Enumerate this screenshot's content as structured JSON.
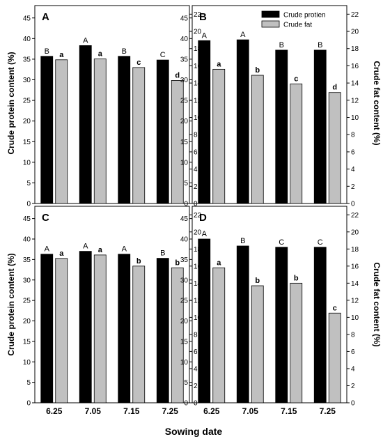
{
  "figure": {
    "xlabel": "Sowing date",
    "ylabel_left": "Crude protein content (%)",
    "ylabel_right": "Crude fat content (%)",
    "legend": [
      "Crude protien",
      "Crude fat"
    ],
    "colors": {
      "protein": "#000000",
      "fat": "#c0c0c0"
    }
  },
  "chart_data": [
    {
      "type": "bar",
      "panel": "A",
      "categories": [
        "6.25",
        "7.05",
        "7.15",
        "7.25"
      ],
      "series": [
        {
          "name": "Crude protien",
          "axis": "left",
          "values": [
            35.7,
            38.3,
            35.7,
            34.8
          ],
          "labels": [
            "B",
            "A",
            "B",
            "C"
          ]
        },
        {
          "name": "Crude fat",
          "axis": "right",
          "values": [
            16.7,
            16.8,
            15.8,
            14.3
          ],
          "labels": [
            "a",
            "a",
            "c",
            "d"
          ]
        }
      ],
      "ylim_left": [
        0,
        48
      ],
      "yticks_left": [
        0,
        5,
        10,
        15,
        20,
        25,
        30,
        35,
        40,
        45
      ],
      "ylim_right": [
        0,
        23
      ],
      "yticks_right": [
        0,
        2,
        4,
        6,
        8,
        10,
        12,
        14,
        16,
        18,
        20,
        22
      ],
      "ylabel_left": "Crude protein content (%)",
      "legend_position": "top-right"
    },
    {
      "type": "bar",
      "panel": "B",
      "categories": [
        "6.25",
        "7.05",
        "7.15",
        "7.25"
      ],
      "series": [
        {
          "name": "Crude protien",
          "axis": "left",
          "values": [
            39.5,
            39.7,
            37.2,
            37.2
          ],
          "labels": [
            "A",
            "A",
            "B",
            "B"
          ]
        },
        {
          "name": "Crude fat",
          "axis": "right",
          "values": [
            15.6,
            14.9,
            13.9,
            12.9
          ],
          "labels": [
            "a",
            "b",
            "c",
            "d"
          ]
        }
      ],
      "ylim_left": [
        0,
        48
      ],
      "yticks_left": [
        0,
        5,
        10,
        15,
        20,
        25,
        30,
        35,
        40,
        45
      ],
      "ylim_right": [
        0,
        23
      ],
      "yticks_right": [
        0,
        2,
        4,
        6,
        8,
        10,
        12,
        14,
        16,
        18,
        20,
        22
      ],
      "ylabel_right": "Crude fat content (%)",
      "legend_position": "top-right"
    },
    {
      "type": "bar",
      "panel": "C",
      "categories": [
        "6.25",
        "7.05",
        "7.15",
        "7.25"
      ],
      "series": [
        {
          "name": "Crude protien",
          "axis": "left",
          "values": [
            36.3,
            37.0,
            36.3,
            35.3
          ],
          "labels": [
            "A",
            "A",
            "A",
            "B"
          ]
        },
        {
          "name": "Crude fat",
          "axis": "right",
          "values": [
            16.9,
            17.3,
            16.0,
            15.8
          ],
          "labels": [
            "a",
            "a",
            "b",
            "b"
          ]
        }
      ],
      "ylim_left": [
        0,
        48
      ],
      "yticks_left": [
        0,
        5,
        10,
        15,
        20,
        25,
        30,
        35,
        40,
        45
      ],
      "ylim_right": [
        0,
        23
      ],
      "yticks_right": [
        0,
        2,
        4,
        6,
        8,
        10,
        12,
        14,
        16,
        18,
        20,
        22
      ],
      "ylabel_left": "Crude protein content (%)"
    },
    {
      "type": "bar",
      "panel": "D",
      "categories": [
        "6.25",
        "7.05",
        "7.15",
        "7.25"
      ],
      "series": [
        {
          "name": "Crude protien",
          "axis": "left",
          "values": [
            40.0,
            38.3,
            38.0,
            38.0
          ],
          "labels": [
            "A",
            "B",
            "C",
            "C"
          ]
        },
        {
          "name": "Crude fat",
          "axis": "right",
          "values": [
            15.8,
            13.7,
            14.0,
            10.5
          ],
          "labels": [
            "a",
            "b",
            "b",
            "c"
          ]
        }
      ],
      "ylim_left": [
        0,
        48
      ],
      "yticks_left": [
        0,
        5,
        10,
        15,
        20,
        25,
        30,
        35,
        40,
        45
      ],
      "ylim_right": [
        0,
        23
      ],
      "yticks_right": [
        0,
        2,
        4,
        6,
        8,
        10,
        12,
        14,
        16,
        18,
        20,
        22
      ],
      "ylabel_right": "Crude fat content (%)"
    }
  ]
}
